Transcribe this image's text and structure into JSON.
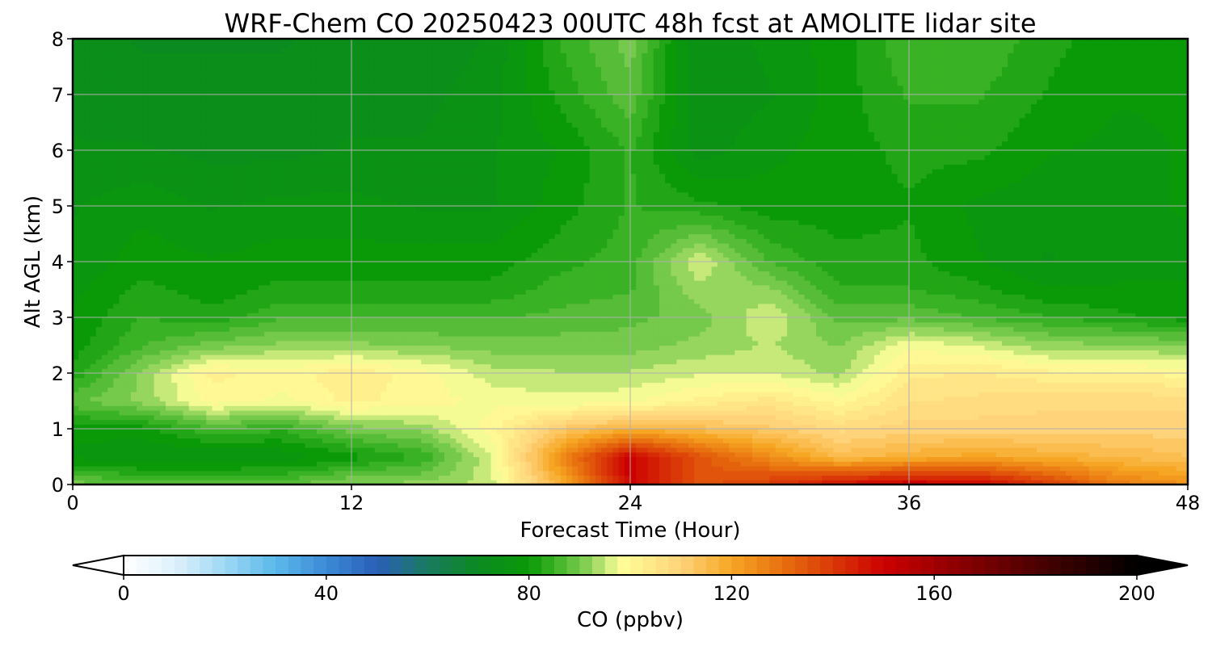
{
  "chart_data": {
    "type": "heatmap",
    "subtype": "filled-contour time-height cross section",
    "title": "WRF-Chem CO  20250423 00UTC 48h fcst at AMOLITE lidar site",
    "xlabel": "Forecast Time (Hour)",
    "ylabel": "Alt AGL (km)",
    "xlim": [
      0,
      48
    ],
    "ylim": [
      0,
      8
    ],
    "xticks": [
      0,
      12,
      24,
      36,
      48
    ],
    "yticks": [
      0,
      1,
      2,
      3,
      4,
      5,
      6,
      7,
      8
    ],
    "grid": true,
    "x": [
      0,
      3,
      6,
      9,
      12,
      15,
      18,
      21,
      24,
      27,
      30,
      33,
      36,
      39,
      42,
      45,
      48
    ],
    "y": [
      0,
      0.5,
      1,
      1.5,
      2,
      2.5,
      3,
      3.5,
      4,
      5,
      6,
      7,
      8
    ],
    "values": [
      [
        90,
        88,
        88,
        88,
        92,
        92,
        95,
        118,
        150,
        135,
        140,
        148,
        152,
        150,
        140,
        128,
        124
      ],
      [
        78,
        76,
        76,
        77,
        80,
        84,
        96,
        125,
        150,
        135,
        125,
        115,
        118,
        120,
        118,
        116,
        114
      ],
      [
        80,
        80,
        86,
        84,
        90,
        92,
        100,
        112,
        118,
        115,
        112,
        108,
        110,
        110,
        110,
        110,
        110
      ],
      [
        88,
        92,
        100,
        98,
        102,
        100,
        98,
        97,
        98,
        102,
        105,
        100,
        106,
        107,
        108,
        108,
        108
      ],
      [
        82,
        92,
        102,
        100,
        103,
        100,
        95,
        94,
        94,
        96,
        96,
        93,
        103,
        104,
        102,
        102,
        100
      ],
      [
        80,
        86,
        90,
        92,
        92,
        91,
        90,
        90,
        90,
        92,
        94,
        91,
        98,
        96,
        92,
        92,
        91
      ],
      [
        79,
        84,
        82,
        86,
        86,
        86,
        86,
        87,
        88,
        90,
        96,
        88,
        88,
        86,
        84,
        82,
        80
      ],
      [
        78,
        82,
        80,
        82,
        82,
        82,
        82,
        85,
        86,
        93,
        92,
        84,
        84,
        82,
        79,
        79,
        79
      ],
      [
        77,
        80,
        79,
        80,
        80,
        80,
        80,
        83,
        85,
        96,
        86,
        82,
        82,
        79,
        76,
        78,
        78
      ],
      [
        76,
        78,
        76,
        77,
        77,
        76,
        76,
        80,
        84,
        82,
        80,
        80,
        81,
        78,
        77,
        78,
        79
      ],
      [
        74,
        74,
        73,
        73,
        74,
        74,
        76,
        79,
        84,
        75,
        78,
        80,
        82,
        82,
        79,
        78,
        79
      ],
      [
        73,
        72,
        72,
        72,
        73,
        73,
        75,
        82,
        88,
        74,
        76,
        80,
        84,
        84,
        81,
        79,
        79
      ],
      [
        72,
        71,
        71,
        71,
        72,
        72,
        74,
        84,
        90,
        74,
        77,
        80,
        86,
        86,
        82,
        80,
        80
      ]
    ],
    "colorbar": {
      "label": "CO  (ppbv)",
      "range": [
        0,
        200
      ],
      "ticks": [
        0,
        40,
        80,
        120,
        160,
        200
      ],
      "extend": "both",
      "orientation": "horizontal",
      "colors": [
        "#ffffff",
        "#dff1fb",
        "#9ed8f5",
        "#5bb9ea",
        "#3c8ad6",
        "#2a5fb8",
        "#1a7a60",
        "#0b8a20",
        "#0a9a08",
        "#3ab225",
        "#8cd25a",
        "#ffff99",
        "#ffd37a",
        "#f6a623",
        "#e8700f",
        "#cc0000",
        "#8a0000",
        "#3a0000",
        "#000000"
      ],
      "color_stops": [
        0,
        10,
        20,
        30,
        40,
        50,
        60,
        70,
        80,
        85,
        92,
        98,
        110,
        120,
        130,
        150,
        165,
        185,
        200
      ]
    }
  }
}
